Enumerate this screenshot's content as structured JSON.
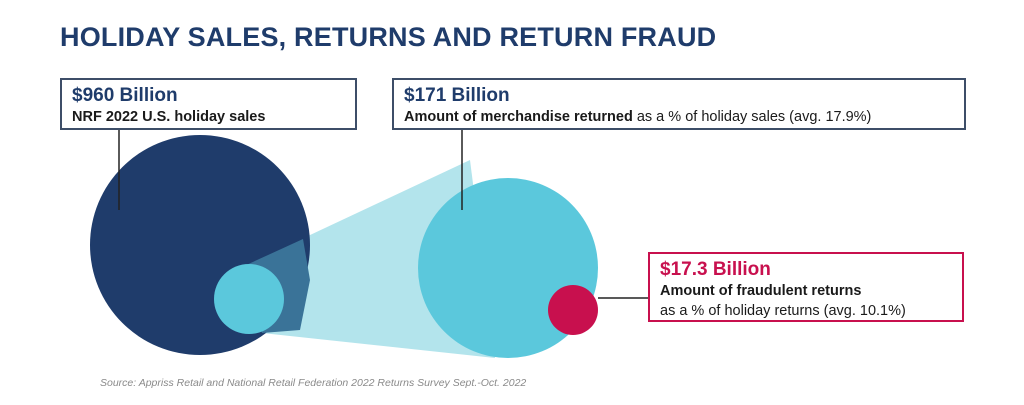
{
  "title": "HOLIDAY SALES, RETURNS AND RETURN FRAUD",
  "colors": {
    "navy": "#1f3c6b",
    "cyan": "#5bc8dc",
    "light_cyan": "#b3e4ec",
    "magenta": "#c8104e",
    "box_border": "#3d4e68"
  },
  "callouts": {
    "sales": {
      "amount": "$960 Billion",
      "desc": "NRF 2022 U.S. holiday sales"
    },
    "returns": {
      "amount": "$171 Billion",
      "desc_bold": "Amount of merchandise returned",
      "desc_rest": " as a % of holiday sales (avg. 17.9%)"
    },
    "fraud": {
      "amount": "$17.3 Billion",
      "desc_bold": "Amount of fraudulent returns",
      "desc_line2": "as a % of holiday returns (avg. 10.1%)"
    }
  },
  "chart_data": {
    "type": "proportional-circles",
    "items": [
      {
        "label": "NRF 2022 U.S. holiday sales",
        "value_billion": 960
      },
      {
        "label": "Amount of merchandise returned",
        "value_billion": 171,
        "percent_of_parent": 17.9
      },
      {
        "label": "Amount of fraudulent returns",
        "value_billion": 17.3,
        "percent_of_parent": 10.1
      }
    ]
  },
  "source": "Source: Appriss Retail and National Retail Federation 2022 Returns Survey Sept.-Oct. 2022"
}
